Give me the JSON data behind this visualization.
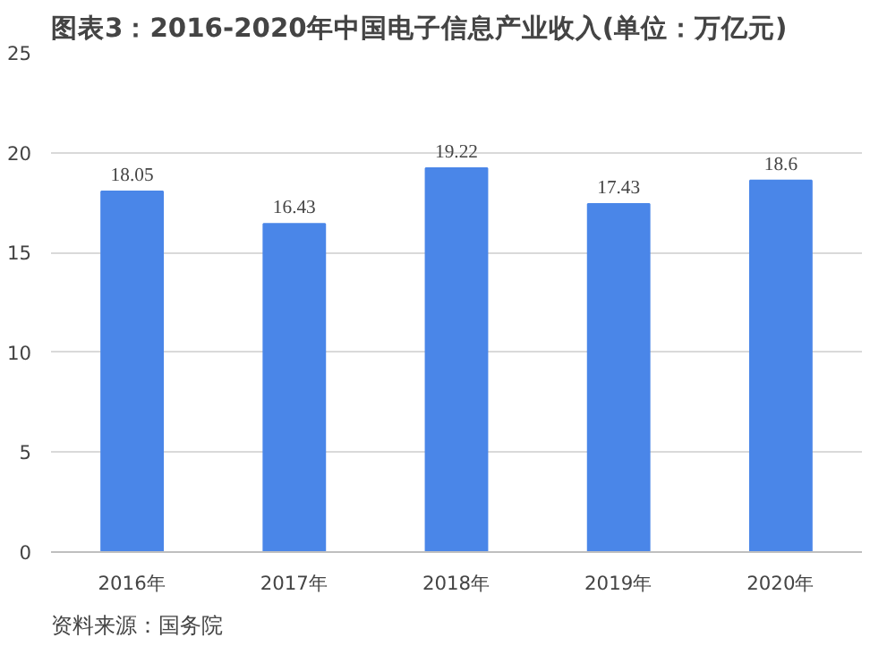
{
  "chart_data": {
    "type": "bar",
    "title": "图表3：2016-2020年中国电子信息产业收入(单位：万亿元)",
    "categories": [
      "2016年",
      "2017年",
      "2018年",
      "2019年",
      "2020年"
    ],
    "values": [
      18.05,
      16.43,
      19.22,
      17.43,
      18.6
    ],
    "color": "#4a86e8",
    "ylim": [
      0,
      25
    ],
    "yticks": [
      0,
      5,
      10,
      15,
      20,
      25
    ],
    "grid": "y",
    "data_labels": true,
    "annotations": [
      "资料来源：国务院"
    ]
  }
}
